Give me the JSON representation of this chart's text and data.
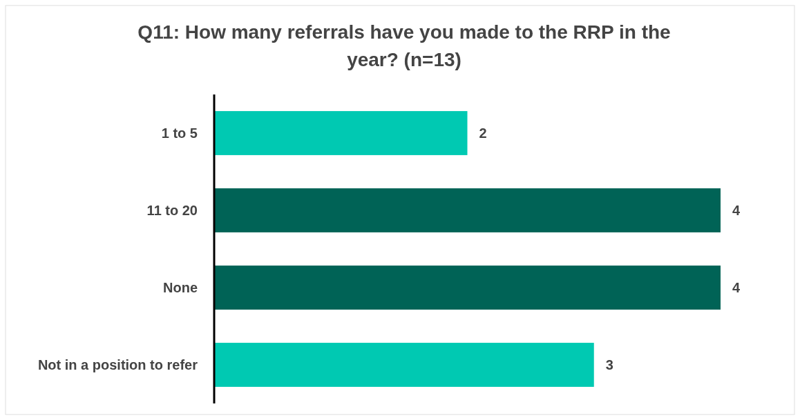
{
  "chart_data": {
    "type": "bar",
    "orientation": "horizontal",
    "title": "Q11: How many referrals have you made to the RRP in the year? (n=13)",
    "categories": [
      "1 to 5",
      "11 to 20",
      "None",
      "Not in a position to refer"
    ],
    "values": [
      2,
      4,
      4,
      3
    ],
    "colors": [
      "#00c9b2",
      "#006356",
      "#006356",
      "#00c9b2"
    ],
    "xlim": [
      0,
      4
    ],
    "data_labels": true
  }
}
